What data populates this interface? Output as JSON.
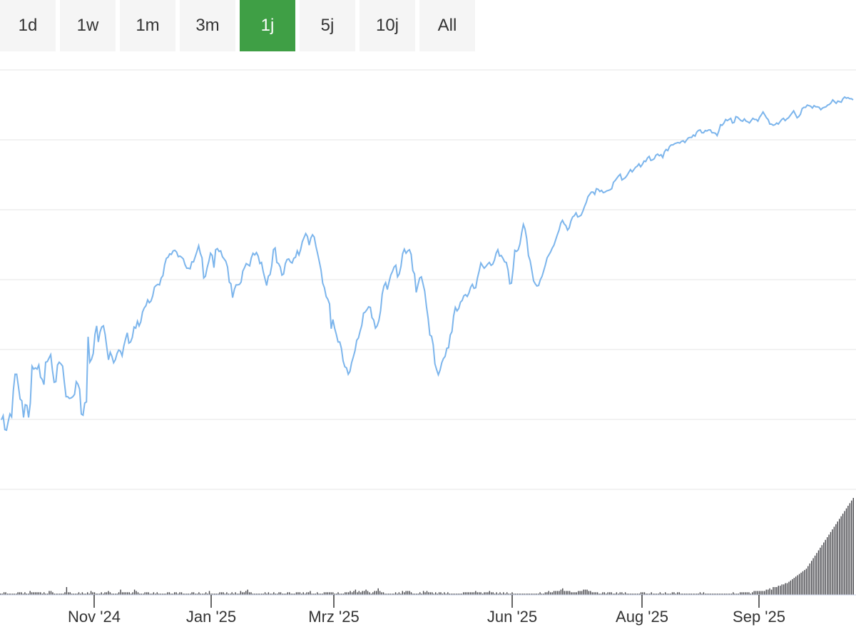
{
  "range_selector": {
    "buttons": [
      {
        "label": "1d",
        "active": false
      },
      {
        "label": "1w",
        "active": false
      },
      {
        "label": "1m",
        "active": false
      },
      {
        "label": "3m",
        "active": false
      },
      {
        "label": "1j",
        "active": true
      },
      {
        "label": "5j",
        "active": false
      },
      {
        "label": "10j",
        "active": false
      },
      {
        "label": "All",
        "active": false
      }
    ],
    "active_color": "#3f9f45"
  },
  "chart_data": {
    "type": "line",
    "title": "",
    "xlabel": "",
    "ylabel": "",
    "y_axis_labels_visible": false,
    "grid": true,
    "x_ticks": [
      "Nov '24",
      "Jan '25",
      "Mrz '25",
      "Jun '25",
      "Aug '25",
      "Sep '25"
    ],
    "series": [
      {
        "type": "line",
        "color": "#7cb5ec",
        "values": [
          585,
          578,
          602,
          603,
          588,
          575,
          580,
          534,
          506,
          506,
          527,
          549,
          552,
          581,
          559,
          560,
          581,
          556,
          492,
          497,
          495,
          497,
          490,
          511,
          515,
          524,
          485,
          484,
          478,
          472,
          499,
          520,
          519,
          490,
          485,
          488,
          492,
          520,
          545,
          545,
          548,
          547,
          545,
          541,
          519,
          523,
          532,
          575,
          577,
          556,
          554,
          441,
          485,
          480,
          470,
          437,
          422,
          450,
          433,
          424,
          422,
          437,
          460,
          481,
          468,
          475,
          486,
          481,
          470,
          464,
          466,
          474,
          457,
          445,
          434,
          452,
          450,
          442,
          424,
          426,
          414,
          422,
          415,
          398,
          391,
          387,
          377,
          382,
          379,
          370,
          355,
          352,
          350,
          351,
          339,
          335,
          316,
          305,
          303,
          297,
          298,
          292,
          291,
          294,
          302,
          301,
          303,
          306,
          316,
          322,
          322,
          323,
          311,
          311,
          302,
          293,
          283,
          296,
          304,
          339,
          336,
          321,
          310,
          296,
          300,
          321,
          290,
          288,
          293,
          292,
          302,
          306,
          310,
          320,
          346,
          349,
          373,
          359,
          351,
          351,
          350,
          346,
          327,
          321,
          314,
          316,
          318,
          304,
          296,
          299,
          295,
          301,
          314,
          312,
          328,
          340,
          352,
          336,
          333,
          318,
          290,
          287,
          312,
          314,
          320,
          334,
          332,
          314,
          307,
          306,
          311,
          313,
          305,
          303,
          292,
          299,
          290,
          276,
          269,
          262,
          267,
          282,
          270,
          264,
          268,
          284,
          297,
          311,
          325,
          348,
          356,
          371,
          376,
          384,
          427,
          411,
          426,
          437,
          450,
          450,
          461,
          483,
          493,
          495,
          506,
          501,
          486,
          476,
          465,
          447,
          443,
          431,
          421,
          400,
          398,
          394,
          389,
          390,
          408,
          412,
          426,
          422,
          413,
          396,
          367,
          353,
          347,
          359,
          346,
          334,
          328,
          320,
          317,
          337,
          332,
          319,
          297,
          289,
          296,
          292,
          290,
          298,
          326,
          332,
          364,
          351,
          339,
          337,
          349,
          362,
          388,
          409,
          438,
          440,
          455,
          488,
          498,
          507,
          499,
          486,
          479,
          475,
          461,
          460,
          438,
          432,
          405,
          390,
          396,
          392,
          381,
          378,
          370,
          368,
          371,
          365,
          355,
          350,
          357,
          356,
          339,
          327,
          313,
          318,
          322,
          319,
          315,
          312,
          317,
          315,
          308,
          296,
          290,
          301,
          300,
          305,
          311,
          312,
          325,
          349,
          348,
          323,
          291,
          293,
          290,
          280,
          261,
          246,
          254,
          271,
          300,
          309,
          326,
          344,
          349,
          353,
          352,
          342,
          336,
          326,
          316,
          304,
          299,
          294,
          287,
          282,
          273,
          264,
          256,
          244,
          239,
          245,
          248,
          256,
          252,
          240,
          233,
          231,
          226,
          233,
          232,
          230,
          223,
          215,
          208,
          198,
          194,
          190,
          190,
          194,
          184,
          185,
          189,
          187,
          191,
          190,
          188,
          187,
          186,
          184,
          173,
          170,
          166,
          162,
          159,
          169,
          167,
          165,
          161,
          156,
          151,
          155,
          151,
          147,
          145,
          141,
          146,
          142,
          136,
          137,
          131,
          128,
          135,
          134,
          132,
          126,
          124,
          127,
          125,
          130,
          120,
          116,
          118,
          111,
          108,
          108,
          106,
          105,
          104,
          105,
          102,
          101,
          104,
          100,
          96,
          95,
          95,
          91,
          93,
          86,
          83,
          82,
          87,
          87,
          83,
          84,
          82,
          82,
          87,
          87,
          88,
          92,
          84,
          73,
          74,
          70,
          64,
          66,
          64,
          62,
          70,
          69,
          59,
          60,
          63,
          66,
          67,
          63,
          67,
          68,
          70,
          66,
          62,
          64,
          64,
          67,
          60,
          56,
          51,
          56,
          61,
          64,
          72,
          72,
          74,
          73,
          70,
          72,
          68,
          64,
          62,
          66,
          63,
          61,
          57,
          53,
          49,
          55,
          61,
          59,
          55,
          45,
          43,
          43,
          39,
          40,
          41,
          44,
          40,
          42,
          42,
          43,
          47,
          44,
          43,
          42,
          39,
          38,
          35,
          30,
          33,
          36,
          32,
          33,
          34,
          28,
          25,
          27,
          26,
          28,
          28,
          30
        ]
      },
      {
        "name": "",
        "type": "column",
        "color": "#434348",
        "values": [
          1,
          1,
          2,
          2,
          1,
          1,
          1,
          1,
          1,
          1,
          2,
          2,
          2,
          1,
          2,
          1,
          1,
          3,
          2,
          2,
          2,
          2,
          2,
          2,
          1,
          2,
          1,
          1,
          3,
          3,
          2,
          1,
          1,
          1,
          1,
          1,
          1,
          2,
          6,
          2,
          2,
          1,
          1,
          1,
          1,
          2,
          1,
          2,
          1,
          1,
          2,
          1,
          3,
          2,
          2,
          1,
          1,
          1,
          2,
          1,
          2,
          2,
          3,
          2,
          1,
          1,
          1,
          1,
          2,
          4,
          2,
          2,
          2,
          2,
          2,
          1,
          2,
          4,
          3,
          2,
          1,
          1,
          1,
          2,
          2,
          2,
          1,
          1,
          2,
          1,
          2,
          1,
          1,
          1,
          1,
          1,
          2,
          2,
          1,
          1,
          2,
          2,
          1,
          2,
          2,
          1,
          1,
          1,
          1,
          1,
          2,
          2,
          1,
          1,
          2,
          1,
          1,
          1,
          2,
          1,
          3,
          1,
          1,
          1,
          1,
          1,
          2,
          2,
          2,
          1,
          2,
          1,
          1,
          2,
          1,
          2,
          1,
          1,
          3,
          2,
          2,
          3,
          4,
          2,
          2,
          1,
          1,
          1,
          1,
          1,
          1,
          1,
          2,
          1,
          2,
          1,
          1,
          2,
          1,
          1,
          2,
          2,
          1,
          1,
          1,
          2,
          2,
          1,
          1,
          1,
          2,
          2,
          2,
          1,
          2,
          1,
          2,
          2,
          3,
          1,
          1,
          1,
          2,
          1,
          1,
          1,
          2,
          2,
          2,
          2,
          2,
          2,
          1,
          1,
          2,
          1,
          1,
          1,
          2,
          2,
          2,
          3,
          2,
          3,
          4,
          2,
          3,
          2,
          3,
          3,
          4,
          3,
          2,
          1,
          2,
          3,
          3,
          5,
          3,
          2,
          2,
          1,
          1,
          1,
          1,
          1,
          1,
          2,
          1,
          2,
          1,
          3,
          2,
          3,
          3,
          3,
          2,
          1,
          1,
          1,
          1,
          2,
          1,
          3,
          2,
          3,
          2,
          2,
          2,
          1,
          2,
          1,
          2,
          2,
          1,
          2,
          1,
          2,
          1,
          1,
          1,
          1,
          1,
          1,
          1,
          1,
          2,
          2,
          2,
          2,
          2,
          2,
          2,
          3,
          2,
          2,
          2,
          1,
          2,
          2,
          2,
          3,
          2,
          2,
          1,
          2,
          1,
          2,
          1,
          2,
          1,
          2,
          1,
          1,
          2,
          1,
          1,
          1,
          1,
          1,
          1,
          1,
          1,
          1,
          1,
          1,
          1,
          1,
          1,
          1,
          2,
          1,
          1,
          2,
          2,
          3,
          2,
          2,
          3,
          3,
          3,
          3,
          4,
          5,
          3,
          3,
          3,
          3,
          2,
          2,
          2,
          2,
          3,
          3,
          3,
          4,
          4,
          4,
          3,
          3,
          2,
          2,
          2,
          2,
          1,
          1,
          2,
          2,
          1,
          2,
          2,
          2,
          1,
          1,
          2,
          1,
          2,
          2,
          1,
          2,
          1,
          1,
          1,
          1,
          1,
          1,
          1,
          1,
          2,
          2,
          2,
          1,
          1,
          1,
          2,
          1,
          1,
          1,
          1,
          2,
          1,
          1,
          2,
          1,
          1,
          1,
          2,
          2,
          1,
          2,
          2,
          1,
          1,
          1,
          1,
          1,
          1,
          1,
          1,
          1,
          1,
          1,
          2,
          1,
          2,
          1,
          1,
          1,
          1,
          1,
          1,
          1,
          1,
          1,
          1,
          1,
          1,
          1,
          1,
          1,
          1,
          2,
          1,
          1,
          1,
          2,
          2,
          2,
          2,
          2,
          2,
          1,
          2,
          3,
          3,
          3,
          3,
          3,
          3,
          3,
          4,
          4,
          5,
          4,
          6,
          6,
          6,
          7,
          7,
          8,
          8,
          9,
          9,
          10,
          11,
          12,
          13,
          14,
          15,
          16,
          17,
          18,
          19,
          20,
          22,
          24,
          26,
          28,
          30,
          32,
          34,
          36,
          38,
          40,
          42,
          44,
          46,
          48,
          50,
          52,
          54,
          56,
          58,
          60,
          62,
          64,
          66,
          68,
          70,
          72,
          74
        ]
      }
    ]
  }
}
